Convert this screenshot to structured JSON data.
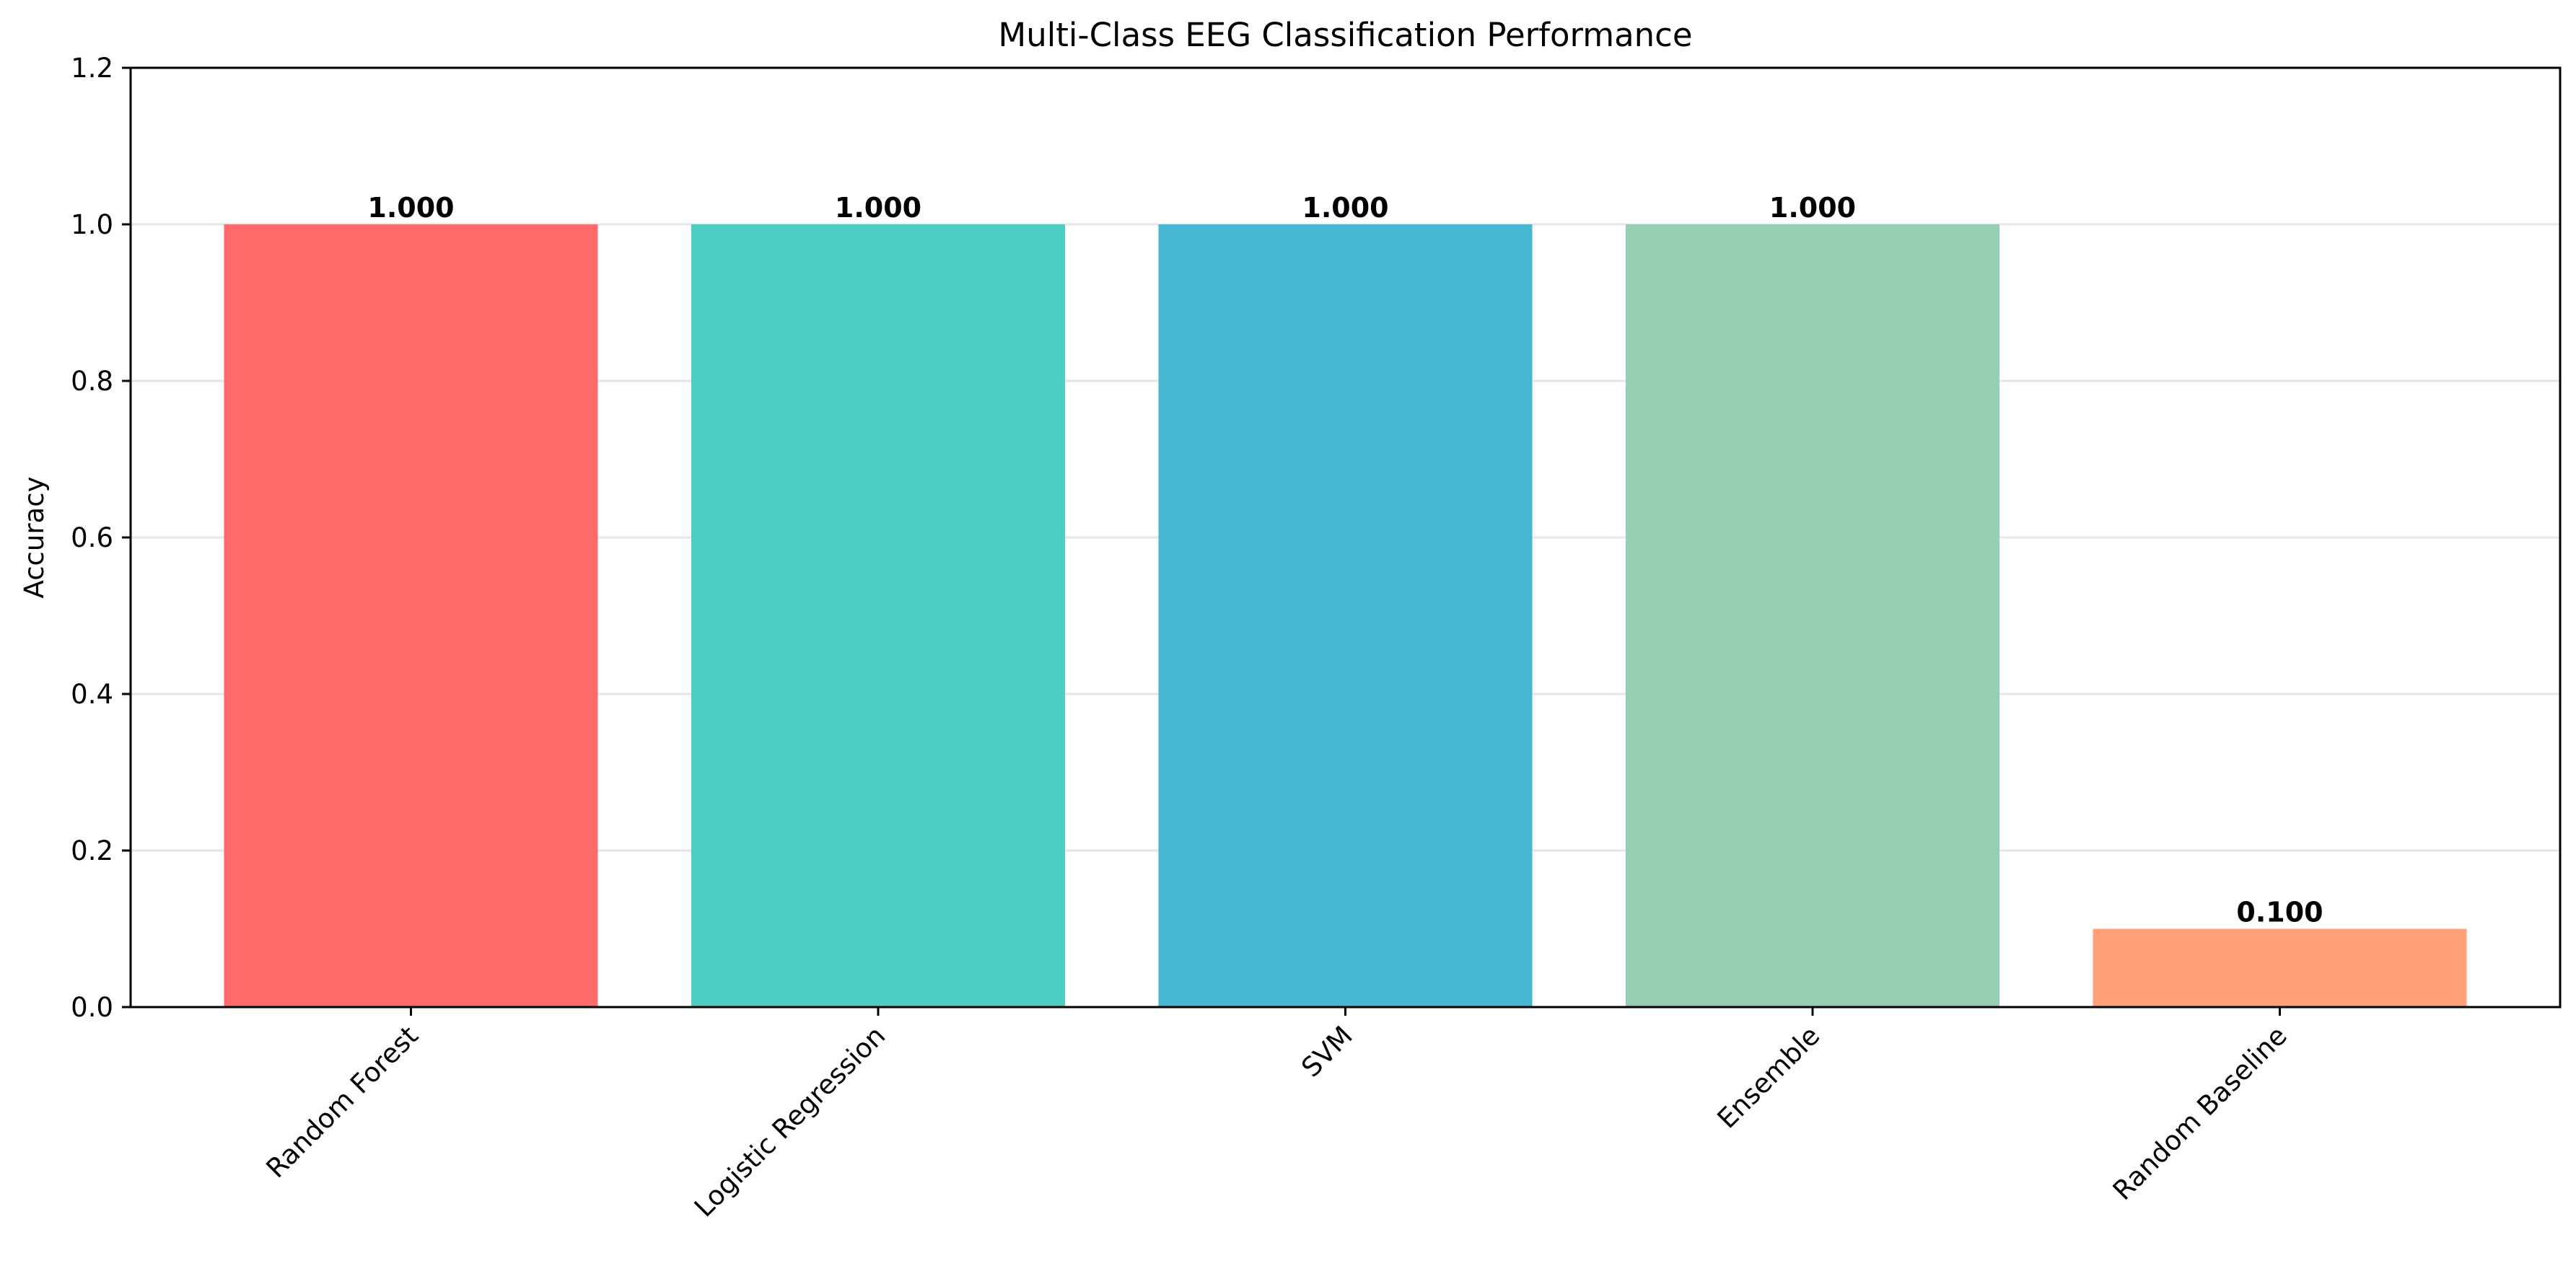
{
  "chart_data": {
    "type": "bar",
    "title": "Multi-Class EEG Classification Performance",
    "xlabel": "",
    "ylabel": "Accuracy",
    "categories": [
      "Random Forest",
      "Logistic Regression",
      "SVM",
      "Ensemble",
      "Random Baseline"
    ],
    "values": [
      1.0,
      1.0,
      1.0,
      1.0,
      0.1
    ],
    "value_labels": [
      "1.000",
      "1.000",
      "1.000",
      "1.000",
      "0.100"
    ],
    "colors": [
      "#ff6b6b",
      "#4ecdc4",
      "#45b7d1",
      "#96ceb4",
      "#ffa07a"
    ],
    "ylim": [
      0,
      1.2
    ],
    "yticks": [
      0.0,
      0.2,
      0.4,
      0.6,
      0.8,
      1.0,
      1.2
    ],
    "ytick_labels": [
      "0.0",
      "0.2",
      "0.4",
      "0.6",
      "0.8",
      "1.0",
      "1.2"
    ],
    "grid": "y-axis only",
    "xtick_rotation": 45,
    "legend": "none"
  }
}
